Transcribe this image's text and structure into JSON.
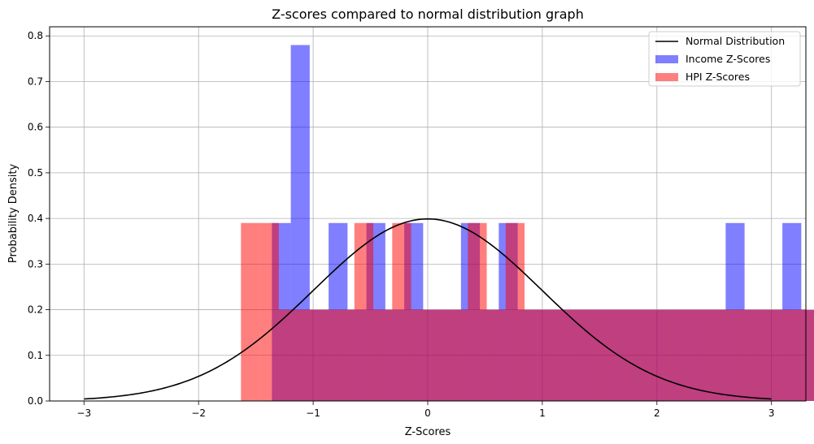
{
  "chart_data": {
    "type": "bar",
    "title": "Z-scores compared to normal distribution graph",
    "xlabel": "Z-Scores",
    "ylabel": "Probability Density",
    "xlim": [
      -3.3,
      3.3
    ],
    "ylim": [
      0,
      0.82
    ],
    "grid": true,
    "legend_position": "top-right",
    "x_ticks": [
      -3,
      -2,
      -1,
      0,
      1,
      2,
      3
    ],
    "x_tick_labels": [
      "−3",
      "−2",
      "−1",
      "0",
      "1",
      "2",
      "3"
    ],
    "y_ticks": [
      0.0,
      0.1,
      0.2,
      0.3,
      0.4,
      0.5,
      0.6,
      0.7,
      0.8
    ],
    "y_tick_labels": [
      "0.0",
      "0.1",
      "0.2",
      "0.3",
      "0.4",
      "0.5",
      "0.6",
      "0.7",
      "0.8"
    ],
    "series": [
      {
        "name": "Income Z-Scores",
        "kind": "histogram",
        "color": "#0000ff",
        "alpha": 0.5,
        "bin_start": -1.36,
        "bin_width": 0.165,
        "values": [
          0.39,
          0.78,
          0.2,
          0.39,
          0.2,
          0.39,
          0.2,
          0.39,
          0.2,
          0.2,
          0.39,
          0.2,
          0.39,
          0.2,
          0.2,
          0.2,
          0.2,
          0.2,
          0.2,
          0.2,
          0.2,
          0.2,
          0.2,
          0.2,
          0.39,
          0.2,
          0.2,
          0.39,
          0.2,
          0.2,
          0.2,
          0.2,
          0.2,
          0.2,
          0.2,
          0.2,
          0.2,
          0.2,
          0.2,
          0.39,
          0.2,
          0.2,
          0.2,
          0.39,
          0.2,
          0.2,
          0.2,
          0.2,
          0.2,
          0.2,
          0.2,
          0.2,
          0.2,
          0.2,
          0.2,
          0.2,
          0.2,
          0.2,
          0.2,
          0.2,
          0.2,
          0.2,
          0.2,
          0.2,
          0.2,
          0.2,
          0.2,
          0.2,
          0.2,
          0.2,
          0.2,
          0.2,
          0.2,
          0.2,
          0.2,
          0.2,
          0.2,
          0.2,
          0.2,
          0.2,
          0.2,
          0.2,
          0.2,
          0.2,
          0.2,
          0.2,
          0.2,
          0.2,
          0.2,
          0.2,
          0.2,
          0.2,
          0.2,
          0.2,
          0.2,
          0.2,
          0.2,
          0.2,
          0.2,
          0.2
        ]
      },
      {
        "name": "HPI Z-Scores",
        "kind": "histogram",
        "color": "#ff0000",
        "alpha": 0.5,
        "bin_start": -1.63,
        "bin_width": 0.165,
        "values": [
          0.39,
          0.39,
          0.2,
          0.2,
          0.2,
          0.2,
          0.39,
          0.2,
          0.39,
          0.2,
          0.2,
          0.2,
          0.39,
          0.2,
          0.39,
          0.2,
          0.2,
          0.2,
          0.2,
          0.2,
          0.2,
          0.2,
          0.2,
          0.2,
          0.2,
          0.2,
          0.2,
          0.2,
          0.2,
          0.2,
          0.2,
          0.2,
          0.2,
          0.2,
          0.2,
          0.2,
          0.2,
          0.2,
          0.2,
          0.2,
          0.2,
          0.2,
          0.2,
          0.2,
          0.2,
          0.2,
          0.2,
          0.2,
          0.2,
          0.2,
          0.2,
          0.2,
          0.2,
          0.2,
          0.2,
          0.2,
          0.2,
          0.2,
          0.2,
          0.2,
          0.2,
          0.2,
          0.2,
          0.2,
          0.2,
          0.2,
          0.2,
          0.2,
          0.2,
          0.2,
          0.2,
          0.2,
          0.2,
          0.2,
          0.2,
          0.2,
          0.2,
          0.2,
          0.2,
          0.2,
          0.2,
          0.2,
          0.2,
          0.2,
          0.2,
          0.2,
          0.2,
          0.2,
          0.2,
          0.2,
          0.2,
          0.2,
          0.2,
          0.2,
          0.2,
          0.2,
          0.2,
          0.2,
          0.2,
          0.2
        ]
      },
      {
        "name": "Normal Distribution",
        "kind": "line",
        "color": "#000000",
        "mean": 0,
        "std": 1,
        "x_range": [
          -3,
          3
        ]
      }
    ],
    "legend": [
      {
        "label": "Normal Distribution",
        "kind": "line",
        "color": "#000000"
      },
      {
        "label": "Income Z-Scores",
        "kind": "patch",
        "color": "#0000ff",
        "alpha": 0.5
      },
      {
        "label": "HPI Z-Scores",
        "kind": "patch",
        "color": "#ff0000",
        "alpha": 0.5
      }
    ]
  }
}
